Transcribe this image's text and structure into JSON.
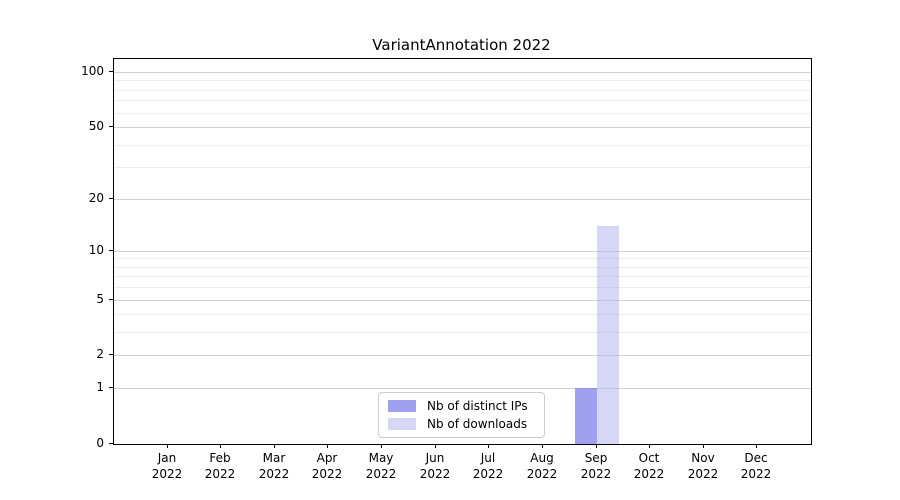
{
  "chart_data": {
    "type": "bar",
    "title": "VariantAnnotation 2022",
    "categories": [
      "Jan",
      "Feb",
      "Mar",
      "Apr",
      "May",
      "Jun",
      "Jul",
      "Aug",
      "Sep",
      "Oct",
      "Nov",
      "Dec"
    ],
    "category_year": "2022",
    "series": [
      {
        "name": "Nb of distinct IPs",
        "color": "rgba(123,123,235,0.72)",
        "color_hex": "#a8a8f0",
        "values": [
          0,
          0,
          0,
          0,
          0,
          0,
          0,
          0,
          1,
          0,
          0,
          0
        ]
      },
      {
        "name": "Nb of downloads",
        "color": "rgba(173,173,240,0.50)",
        "color_hex": "#d9d9f6",
        "values": [
          0,
          0,
          0,
          0,
          0,
          0,
          0,
          0,
          14,
          0,
          0,
          0
        ]
      }
    ],
    "y_axis": {
      "scale": "log1p",
      "ticks": [
        0,
        1,
        2,
        5,
        10,
        20,
        50,
        100
      ],
      "minor_ticks": [
        3,
        4,
        6,
        7,
        8,
        9,
        30,
        40,
        60,
        70,
        80,
        90
      ],
      "max_tick": 100
    },
    "x_axis": {
      "tick_label_format": "month over year"
    },
    "legend": {
      "position": "lower center inside"
    },
    "colors": {
      "major_grid": "#d2d2d2",
      "minor_grid": "#ececec",
      "axis": "#000000",
      "background": "#ffffff"
    }
  }
}
